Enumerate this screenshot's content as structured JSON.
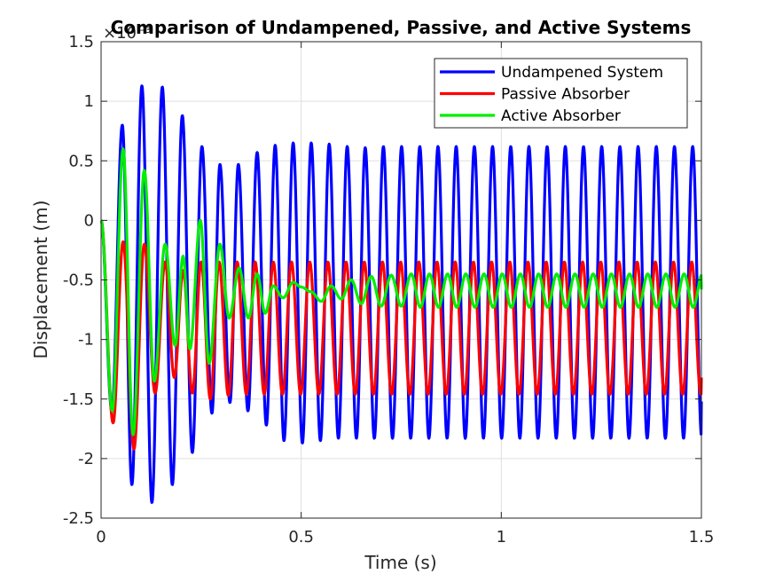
{
  "chart_data": {
    "type": "line",
    "title": "Comparison of Undampened, Passive, and Active Systems",
    "xlabel": "Time (s)",
    "ylabel": "Displacement (m)",
    "y_exponent_label": "×10⁻³",
    "xlim": [
      0,
      1.5
    ],
    "ylim": [
      -2.5,
      1.5
    ],
    "x_ticks": [
      "0",
      "0.5",
      "1",
      "1.5"
    ],
    "y_ticks": [
      "-2.5",
      "-2",
      "-1.5",
      "-1",
      "-0.5",
      "0",
      "0.5",
      "1",
      "1.5"
    ],
    "grid": true,
    "legend_position": "top-right",
    "steady_state_frequency_hz": 22,
    "series": [
      {
        "name": "Undampened System",
        "color": "#0000ff",
        "extrema": [
          [
            0,
            0
          ],
          [
            0.027,
            -1.6
          ],
          [
            0.053,
            0.8
          ],
          [
            0.077,
            -2.22
          ],
          [
            0.102,
            1.13
          ],
          [
            0.127,
            -2.37
          ],
          [
            0.153,
            1.12
          ],
          [
            0.178,
            -2.22
          ],
          [
            0.203,
            0.88
          ],
          [
            0.228,
            -1.95
          ],
          [
            0.252,
            0.62
          ],
          [
            0.277,
            -1.62
          ],
          [
            0.297,
            0.47
          ],
          [
            0.322,
            -1.53
          ],
          [
            0.343,
            0.47
          ],
          [
            0.367,
            -1.6
          ],
          [
            0.39,
            0.57
          ],
          [
            0.413,
            -1.72
          ],
          [
            0.435,
            0.63
          ],
          [
            0.457,
            -1.85
          ],
          [
            0.48,
            0.65
          ],
          [
            0.503,
            -1.87
          ],
          [
            0.525,
            0.65
          ],
          [
            0.548,
            -1.85
          ],
          [
            0.57,
            0.64
          ],
          [
            0.593,
            -1.83
          ],
          [
            0.615,
            0.62
          ],
          [
            0.638,
            -1.83
          ],
          [
            0.66,
            0.61
          ]
        ],
        "steady_max": 0.62,
        "steady_min": -1.83,
        "end_value": -1.52
      },
      {
        "name": "Passive Absorber",
        "color": "#ff0000",
        "extrema": [
          [
            0,
            0
          ],
          [
            0.03,
            -1.7
          ],
          [
            0.055,
            -0.18
          ],
          [
            0.082,
            -1.92
          ],
          [
            0.108,
            -0.2
          ],
          [
            0.135,
            -1.45
          ],
          [
            0.16,
            -0.35
          ],
          [
            0.183,
            -1.32
          ],
          [
            0.205,
            -0.42
          ],
          [
            0.228,
            -1.45
          ],
          [
            0.25,
            -0.35
          ],
          [
            0.273,
            -1.5
          ],
          [
            0.295,
            -0.35
          ],
          [
            0.318,
            -1.47
          ],
          [
            0.34,
            -0.35
          ],
          [
            0.363,
            -1.46
          ],
          [
            0.385,
            -0.35
          ]
        ],
        "steady_max": -0.35,
        "steady_min": -1.46,
        "end_value": -1.32
      },
      {
        "name": "Active Absorber",
        "color": "#00ee00",
        "extrema": [
          [
            0,
            0
          ],
          [
            0.028,
            -1.6
          ],
          [
            0.055,
            0.6
          ],
          [
            0.08,
            -1.8
          ],
          [
            0.108,
            0.42
          ],
          [
            0.133,
            -1.35
          ],
          [
            0.16,
            -0.2
          ],
          [
            0.185,
            -1.05
          ],
          [
            0.205,
            -0.3
          ],
          [
            0.222,
            -1.08
          ],
          [
            0.248,
            0.0
          ],
          [
            0.27,
            -1.2
          ],
          [
            0.297,
            -0.2
          ],
          [
            0.32,
            -0.82
          ],
          [
            0.345,
            -0.4
          ],
          [
            0.368,
            -0.82
          ],
          [
            0.39,
            -0.45
          ],
          [
            0.41,
            -0.78
          ],
          [
            0.43,
            -0.55
          ],
          [
            0.455,
            -0.65
          ],
          [
            0.48,
            -0.52
          ],
          [
            0.5,
            -0.56
          ],
          [
            0.525,
            -0.6
          ],
          [
            0.55,
            -0.68
          ],
          [
            0.575,
            -0.55
          ],
          [
            0.6,
            -0.66
          ],
          [
            0.625,
            -0.5
          ],
          [
            0.65,
            -0.7
          ],
          [
            0.675,
            -0.47
          ],
          [
            0.7,
            -0.72
          ],
          [
            0.725,
            -0.46
          ],
          [
            0.75,
            -0.72
          ],
          [
            0.775,
            -0.45
          ]
        ],
        "steady_max": -0.45,
        "steady_min": -0.73,
        "end_value": -0.58
      }
    ]
  }
}
